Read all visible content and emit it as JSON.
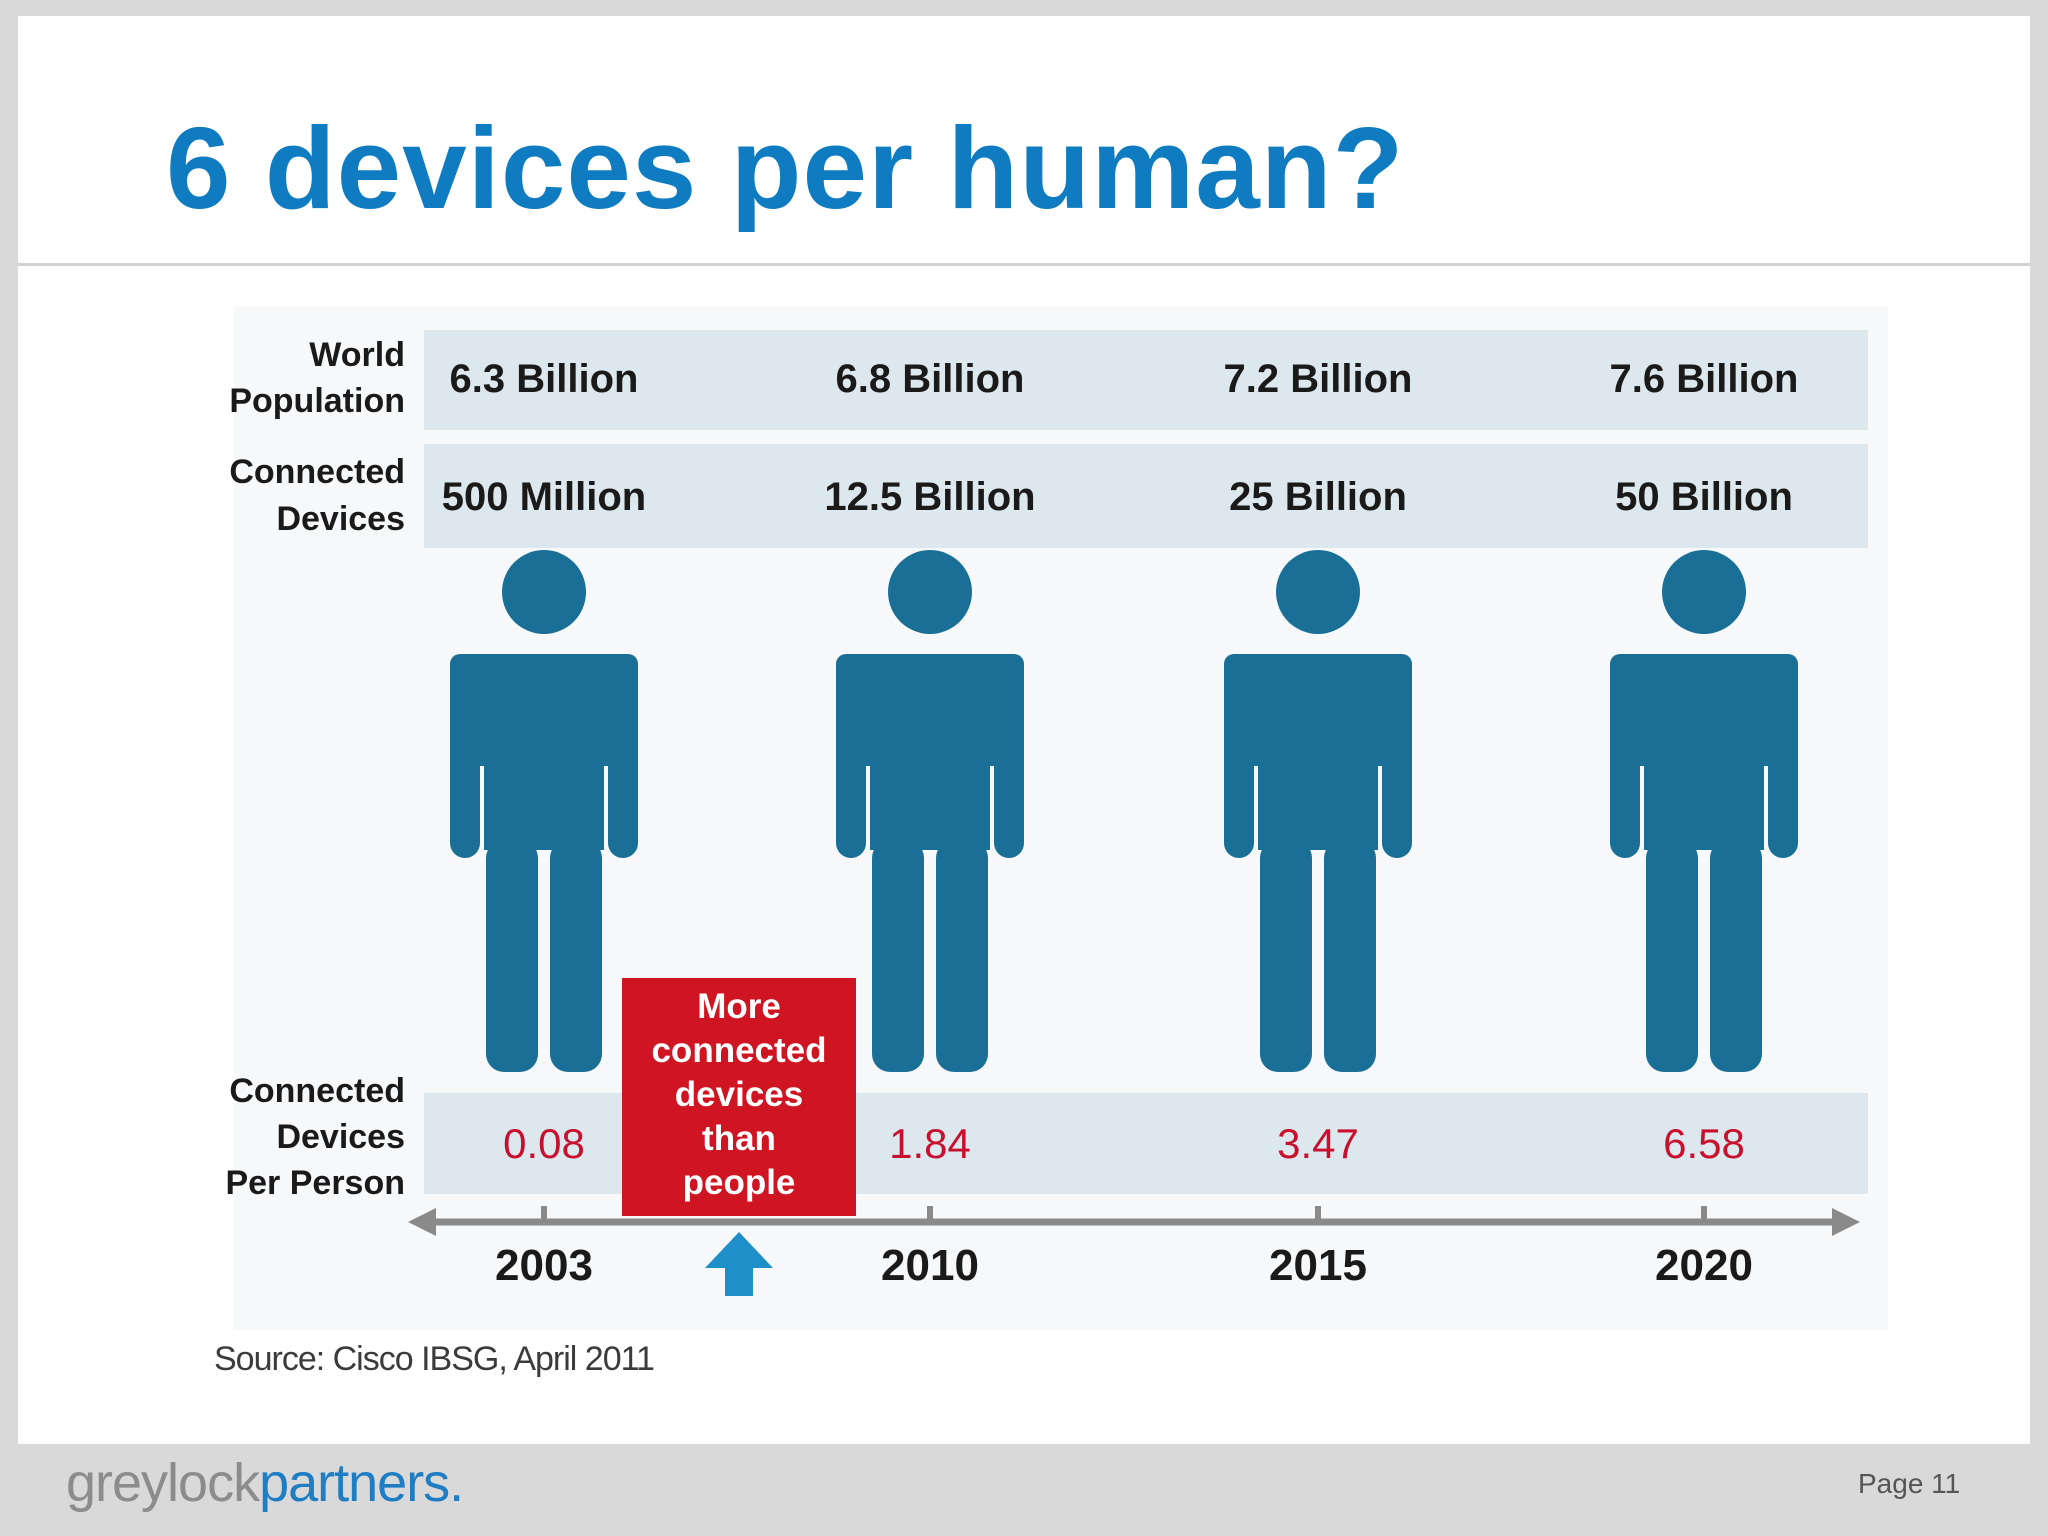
{
  "slide": {
    "title": "6 devices per human?",
    "page_label": "Page 11"
  },
  "footer": {
    "logo_text_grey": "greylock",
    "logo_text_blue": "partners."
  },
  "source": "Source: Cisco IBSG, April 2011",
  "chart_data": {
    "type": "table",
    "row_labels": {
      "world_population": [
        "World",
        "Population"
      ],
      "connected_devices": [
        "Connected",
        "Devices"
      ],
      "devices_per_person": [
        "Connected",
        "Devices",
        "Per Person"
      ]
    },
    "years": [
      "2003",
      "2010",
      "2015",
      "2020"
    ],
    "world_population": [
      "6.3 Billion",
      "6.8 Billion",
      "7.2 Billion",
      "7.6 Billion"
    ],
    "connected_devices": [
      "500 Million",
      "12.5 Billion",
      "25 Billion",
      "50 Billion"
    ],
    "devices_per_person": [
      "0.08",
      "1.84",
      "3.47",
      "6.58"
    ],
    "callout": {
      "lines": [
        "More",
        "connected",
        "devices",
        "than",
        "people"
      ],
      "between": [
        "2003",
        "2010"
      ]
    },
    "colors": {
      "band": "#dde8ee",
      "figure": "#1a6f96",
      "per_person_value": "#c8102e",
      "callout_bg": "#d01522",
      "callout_arrow": "#1e8fc9",
      "axis": "#8a8a8a",
      "title": "#0f7cc1",
      "logo_blue": "#1f7ec3"
    },
    "icons": [
      "person-icon",
      "up-arrow-icon",
      "timeline-arrow-icon"
    ]
  }
}
